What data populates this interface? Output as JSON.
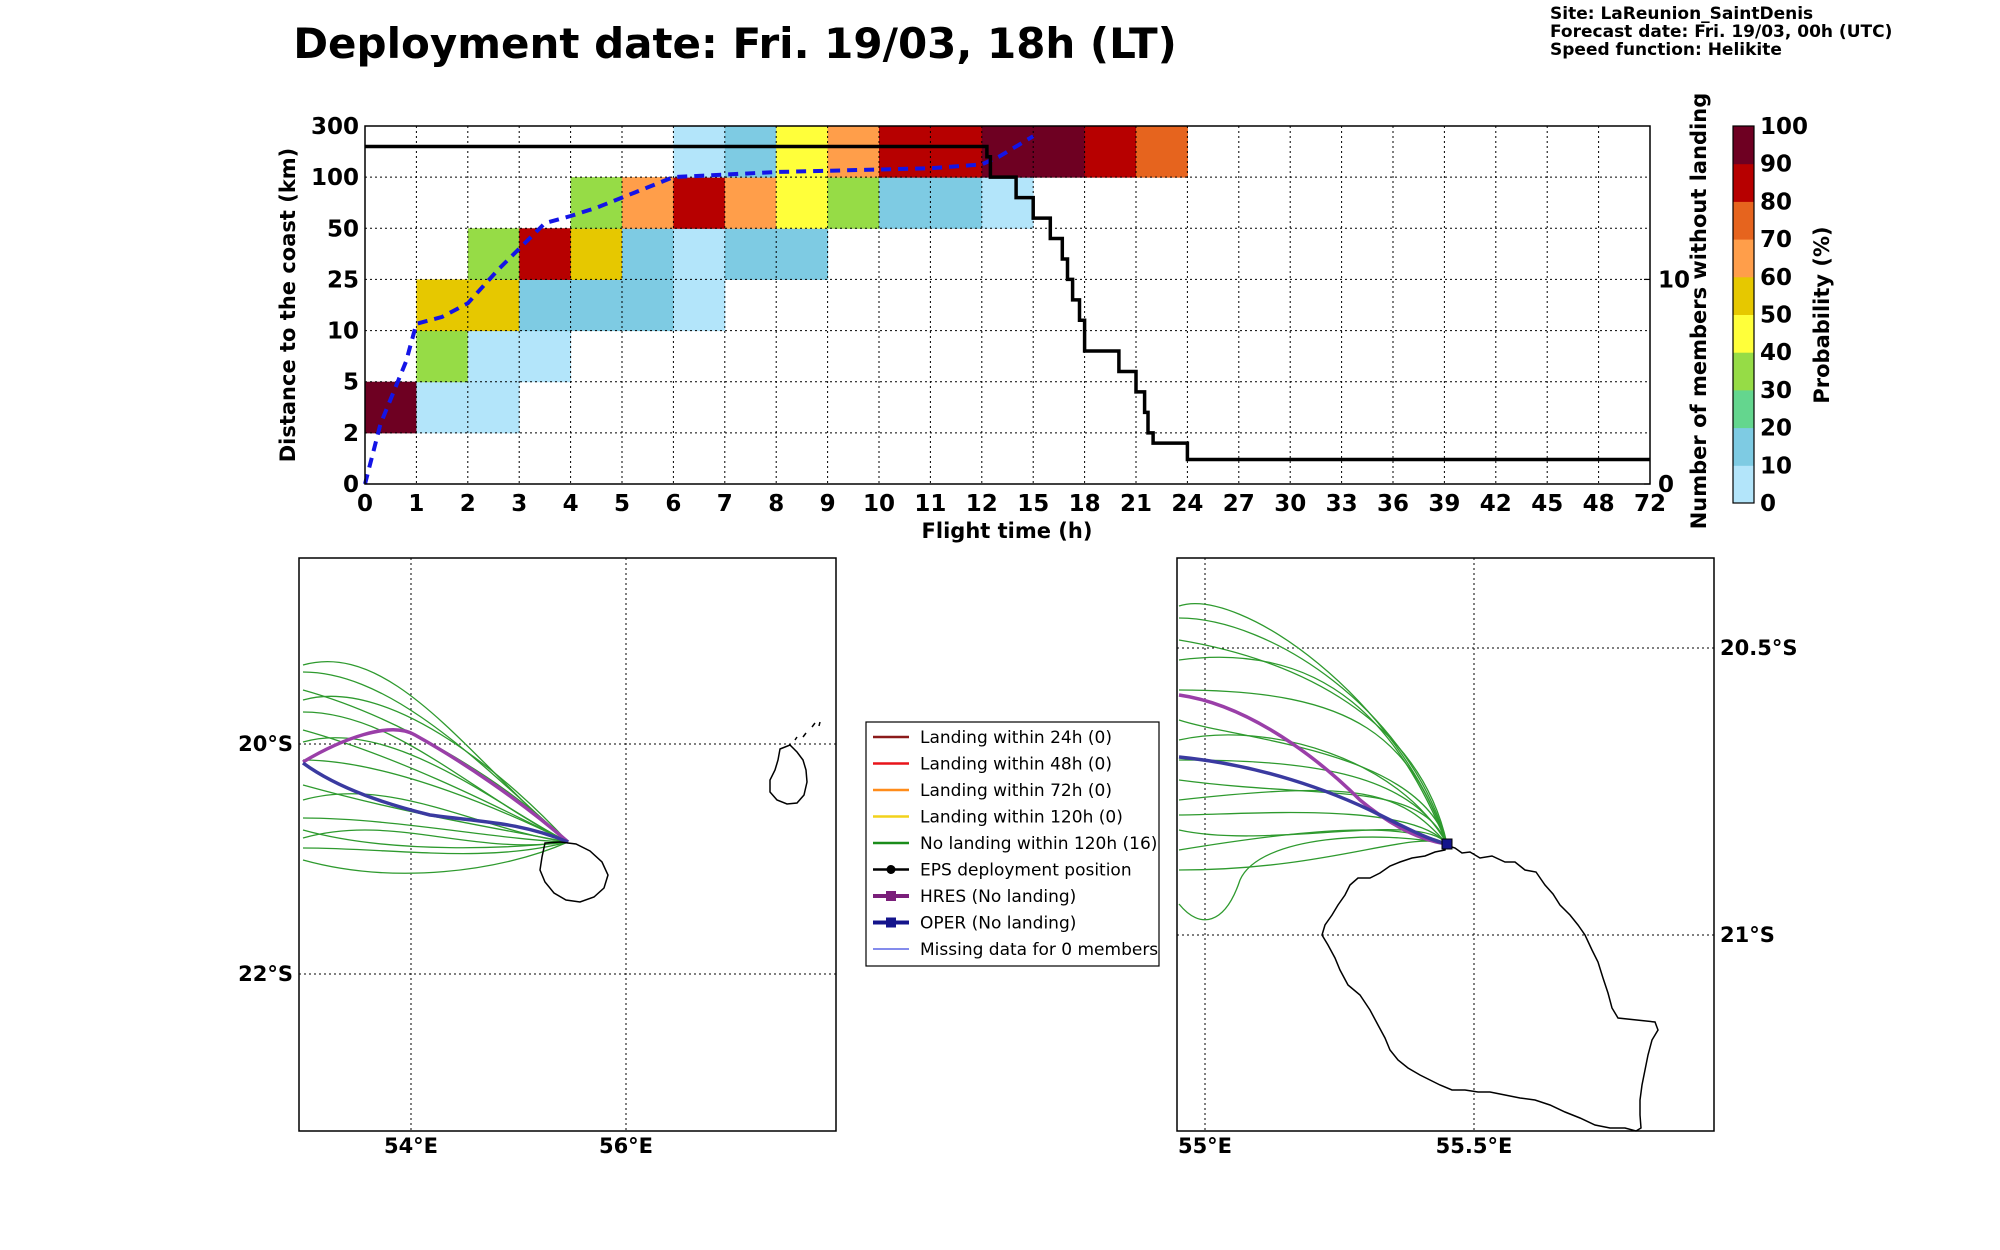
{
  "header": {
    "title": "Deployment date: Fri. 19/03, 18h (LT)",
    "info": [
      "Site: LaReunion_SaintDenis",
      "Forecast date: Fri. 19/03, 00h (UTC)",
      "Speed function: Helikite"
    ]
  },
  "chart_data": [
    {
      "type": "heatmap",
      "xlabel": "Flight time (h)",
      "ylabel": "Distance to the coast (km)",
      "y2label": "Number of members without landing",
      "x_ticks": [
        "0",
        "1",
        "2",
        "3",
        "4",
        "5",
        "6",
        "7",
        "8",
        "9",
        "10",
        "11",
        "12",
        "15",
        "18",
        "21",
        "24",
        "27",
        "30",
        "33",
        "36",
        "39",
        "42",
        "45",
        "48",
        "72"
      ],
      "y_ticks": [
        "0",
        "2",
        "5",
        "10",
        "25",
        "50",
        "100",
        "300"
      ],
      "y2_ticks": [
        "0",
        "10"
      ],
      "y2lim": [
        0,
        17.5
      ],
      "grid": true,
      "colorbar": {
        "label": "Probability (%)",
        "ticks": [
          "0",
          "10",
          "20",
          "30",
          "40",
          "50",
          "60",
          "70",
          "80",
          "90",
          "100"
        ],
        "colors": [
          "#b3e5fa",
          "#7ecbe3",
          "#64d68e",
          "#96dc46",
          "#ffff3a",
          "#e6c800",
          "#ff9e4a",
          "#e6641e",
          "#b70000",
          "#6e0022"
        ]
      },
      "cells": [
        {
          "x": "0",
          "y": "2",
          "p": 95
        },
        {
          "x": "1",
          "y": "2",
          "p": 5
        },
        {
          "x": "2",
          "y": "2",
          "p": 5
        },
        {
          "x": "1",
          "y": "5",
          "p": 35
        },
        {
          "x": "2",
          "y": "5",
          "p": 5
        },
        {
          "x": "3",
          "y": "5",
          "p": 5
        },
        {
          "x": "1",
          "y": "10",
          "p": 55
        },
        {
          "x": "2",
          "y": "10",
          "p": 55
        },
        {
          "x": "3",
          "y": "10",
          "p": 15
        },
        {
          "x": "4",
          "y": "10",
          "p": 15
        },
        {
          "x": "5",
          "y": "10",
          "p": 15
        },
        {
          "x": "6",
          "y": "10",
          "p": 5
        },
        {
          "x": "2",
          "y": "25",
          "p": 35
        },
        {
          "x": "3",
          "y": "25",
          "p": 85
        },
        {
          "x": "4",
          "y": "25",
          "p": 55
        },
        {
          "x": "5",
          "y": "25",
          "p": 15
        },
        {
          "x": "6",
          "y": "25",
          "p": 5
        },
        {
          "x": "7",
          "y": "25",
          "p": 15
        },
        {
          "x": "8",
          "y": "25",
          "p": 15
        },
        {
          "x": "4",
          "y": "50",
          "p": 35
        },
        {
          "x": "5",
          "y": "50",
          "p": 65
        },
        {
          "x": "6",
          "y": "50",
          "p": 85
        },
        {
          "x": "7",
          "y": "50",
          "p": 65
        },
        {
          "x": "8",
          "y": "50",
          "p": 45
        },
        {
          "x": "9",
          "y": "50",
          "p": 35
        },
        {
          "x": "10",
          "y": "50",
          "p": 15
        },
        {
          "x": "11",
          "y": "50",
          "p": 15
        },
        {
          "x": "12",
          "y": "50",
          "p": 5
        },
        {
          "x": "6",
          "y": "100",
          "p": 5
        },
        {
          "x": "7",
          "y": "100",
          "p": 15
        },
        {
          "x": "8",
          "y": "100",
          "p": 45
        },
        {
          "x": "9",
          "y": "100",
          "p": 65
        },
        {
          "x": "10",
          "y": "100",
          "p": 85
        },
        {
          "x": "11",
          "y": "100",
          "p": 85
        },
        {
          "x": "12",
          "y": "100",
          "p": 95
        },
        {
          "x": "15",
          "y": "100",
          "p": 95
        },
        {
          "x": "18",
          "y": "100",
          "p": 85
        },
        {
          "x": "21",
          "y": "100",
          "p": 75
        }
      ],
      "median_distance_km": {
        "t_h": [
          0,
          0.3,
          0.8,
          1,
          1.5,
          2,
          2.3,
          2.6,
          3,
          3.5,
          4,
          4.5,
          5,
          5.5,
          6,
          7,
          8,
          9,
          10,
          11,
          12,
          13,
          14,
          15
        ],
        "d_km": [
          0,
          2.5,
          7,
          12,
          14,
          18,
          23,
          30,
          40,
          55,
          62,
          70,
          80,
          90,
          100,
          110,
          120,
          125,
          130,
          135,
          150,
          180,
          220,
          260
        ]
      },
      "members_without_landing": {
        "t_h": [
          0,
          12,
          12.3,
          12.5,
          14,
          15,
          16,
          16.7,
          17,
          17.3,
          17.7,
          18,
          20,
          21,
          21.5,
          21.7,
          22,
          24,
          72
        ],
        "n": [
          16.5,
          16.5,
          16,
          15,
          14,
          13,
          12,
          11,
          10,
          9,
          8,
          6.5,
          5.5,
          4.5,
          3.5,
          2.5,
          2,
          1.2,
          1.2
        ]
      }
    }
  ],
  "maps": {
    "left": {
      "lon_ticks": [
        "54°E",
        "56°E"
      ],
      "lat_ticks": [
        "20°S",
        "22°S"
      ]
    },
    "right": {
      "lon_ticks": [
        "55°E",
        "55.5°E"
      ],
      "lat_ticks": [
        "20.5°S",
        "21°S"
      ]
    }
  },
  "legend": [
    {
      "label": "Landing within 24h (0)",
      "color": "#8b1a1a",
      "kind": "line"
    },
    {
      "label": "Landing within 48h (0)",
      "color": "#e8141a",
      "kind": "line"
    },
    {
      "label": "Landing within 72h (0)",
      "color": "#ff8c1a",
      "kind": "line"
    },
    {
      "label": "Landing within 120h (0)",
      "color": "#f2d21c",
      "kind": "line"
    },
    {
      "label": "No landing within 120h (16)",
      "color": "#1a8c1a",
      "kind": "line"
    },
    {
      "label": "EPS deployment position",
      "color": "#000000",
      "kind": "dot"
    },
    {
      "label": "HRES (No landing)",
      "color": "#7a1f7a",
      "kind": "square"
    },
    {
      "label": "OPER (No landing)",
      "color": "#14148c",
      "kind": "square"
    },
    {
      "label": "Missing data for 0 members",
      "color": "#3b48e0",
      "kind": "thin"
    }
  ],
  "colors": {
    "median_line": "#1414e6",
    "members_line": "#000000",
    "hres": "#9a3fa8",
    "oper": "#3a3aa0",
    "member_tracks": "#2e9a2e"
  }
}
